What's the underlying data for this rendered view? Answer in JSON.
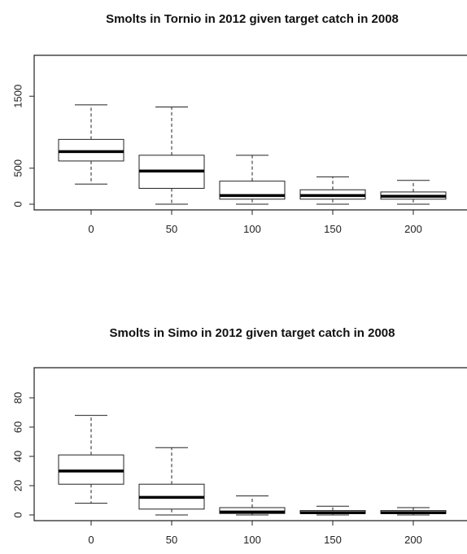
{
  "chart_data": [
    {
      "type": "box",
      "title": "Smolts in Tornio in 2012 given target catch in 2008",
      "xlabel": "",
      "ylabel": "",
      "categories": [
        "0",
        "50",
        "100",
        "150",
        "200"
      ],
      "ylim": [
        0,
        2000
      ],
      "yticks": [
        "0",
        "500",
        "1500"
      ],
      "ytick_values": [
        0,
        500,
        1500
      ],
      "boxes": [
        {
          "category": "0",
          "min": 280,
          "q1": 600,
          "median": 730,
          "q3": 900,
          "max": 1380
        },
        {
          "category": "50",
          "min": 0,
          "q1": 220,
          "median": 460,
          "q3": 680,
          "max": 1350
        },
        {
          "category": "100",
          "min": 0,
          "q1": 70,
          "median": 120,
          "q3": 320,
          "max": 680
        },
        {
          "category": "150",
          "min": 0,
          "q1": 70,
          "median": 120,
          "q3": 200,
          "max": 380
        },
        {
          "category": "200",
          "min": 0,
          "q1": 70,
          "median": 110,
          "q3": 170,
          "max": 330
        }
      ],
      "grid": false
    },
    {
      "type": "box",
      "title": "Smolts in Simo in 2012 given target catch in 2008",
      "xlabel": "",
      "ylabel": "",
      "categories": [
        "0",
        "50",
        "100",
        "150",
        "200"
      ],
      "ylim": [
        0,
        100
      ],
      "yticks": [
        "0",
        "20",
        "40",
        "60",
        "80"
      ],
      "ytick_values": [
        0,
        20,
        40,
        60,
        80
      ],
      "boxes": [
        {
          "category": "0",
          "min": 8,
          "q1": 21,
          "median": 30,
          "q3": 41,
          "max": 68
        },
        {
          "category": "50",
          "min": 0,
          "q1": 4,
          "median": 12,
          "q3": 21,
          "max": 46
        },
        {
          "category": "100",
          "min": 0,
          "q1": 1,
          "median": 2,
          "q3": 5,
          "max": 13
        },
        {
          "category": "150",
          "min": 0,
          "q1": 1,
          "median": 1.5,
          "q3": 3,
          "max": 6
        },
        {
          "category": "200",
          "min": 0,
          "q1": 1,
          "median": 1.5,
          "q3": 3,
          "max": 5
        }
      ],
      "grid": false
    }
  ]
}
